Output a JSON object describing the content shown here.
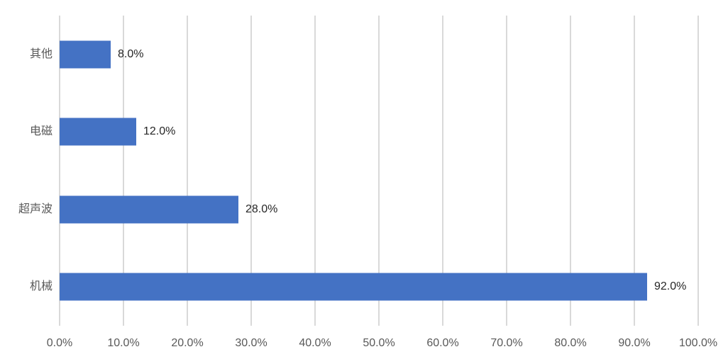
{
  "chart_data": {
    "type": "bar",
    "orientation": "horizontal",
    "order": "top-to-bottom",
    "title": "",
    "xlabel": "",
    "ylabel": "",
    "categories": [
      "其他",
      "电磁",
      "超声波",
      "机械"
    ],
    "values": [
      8.0,
      12.0,
      28.0,
      92.0
    ],
    "data_labels": [
      "8.0%",
      "12.0%",
      "28.0%",
      "92.0%"
    ],
    "x_ticks": [
      "0.0%",
      "10.0%",
      "20.0%",
      "30.0%",
      "40.0%",
      "50.0%",
      "60.0%",
      "70.0%",
      "80.0%",
      "90.0%",
      "100.0%"
    ],
    "xlim": [
      0,
      100
    ],
    "grid": "vertical-major",
    "legend": "none"
  },
  "style": {
    "bar_color": "#4472C4",
    "gridline_color": "#D9D9D9",
    "category_label_color": "#595959",
    "tick_label_color": "#595959",
    "data_label_color": "#262626",
    "background_color": "#FFFFFF"
  }
}
